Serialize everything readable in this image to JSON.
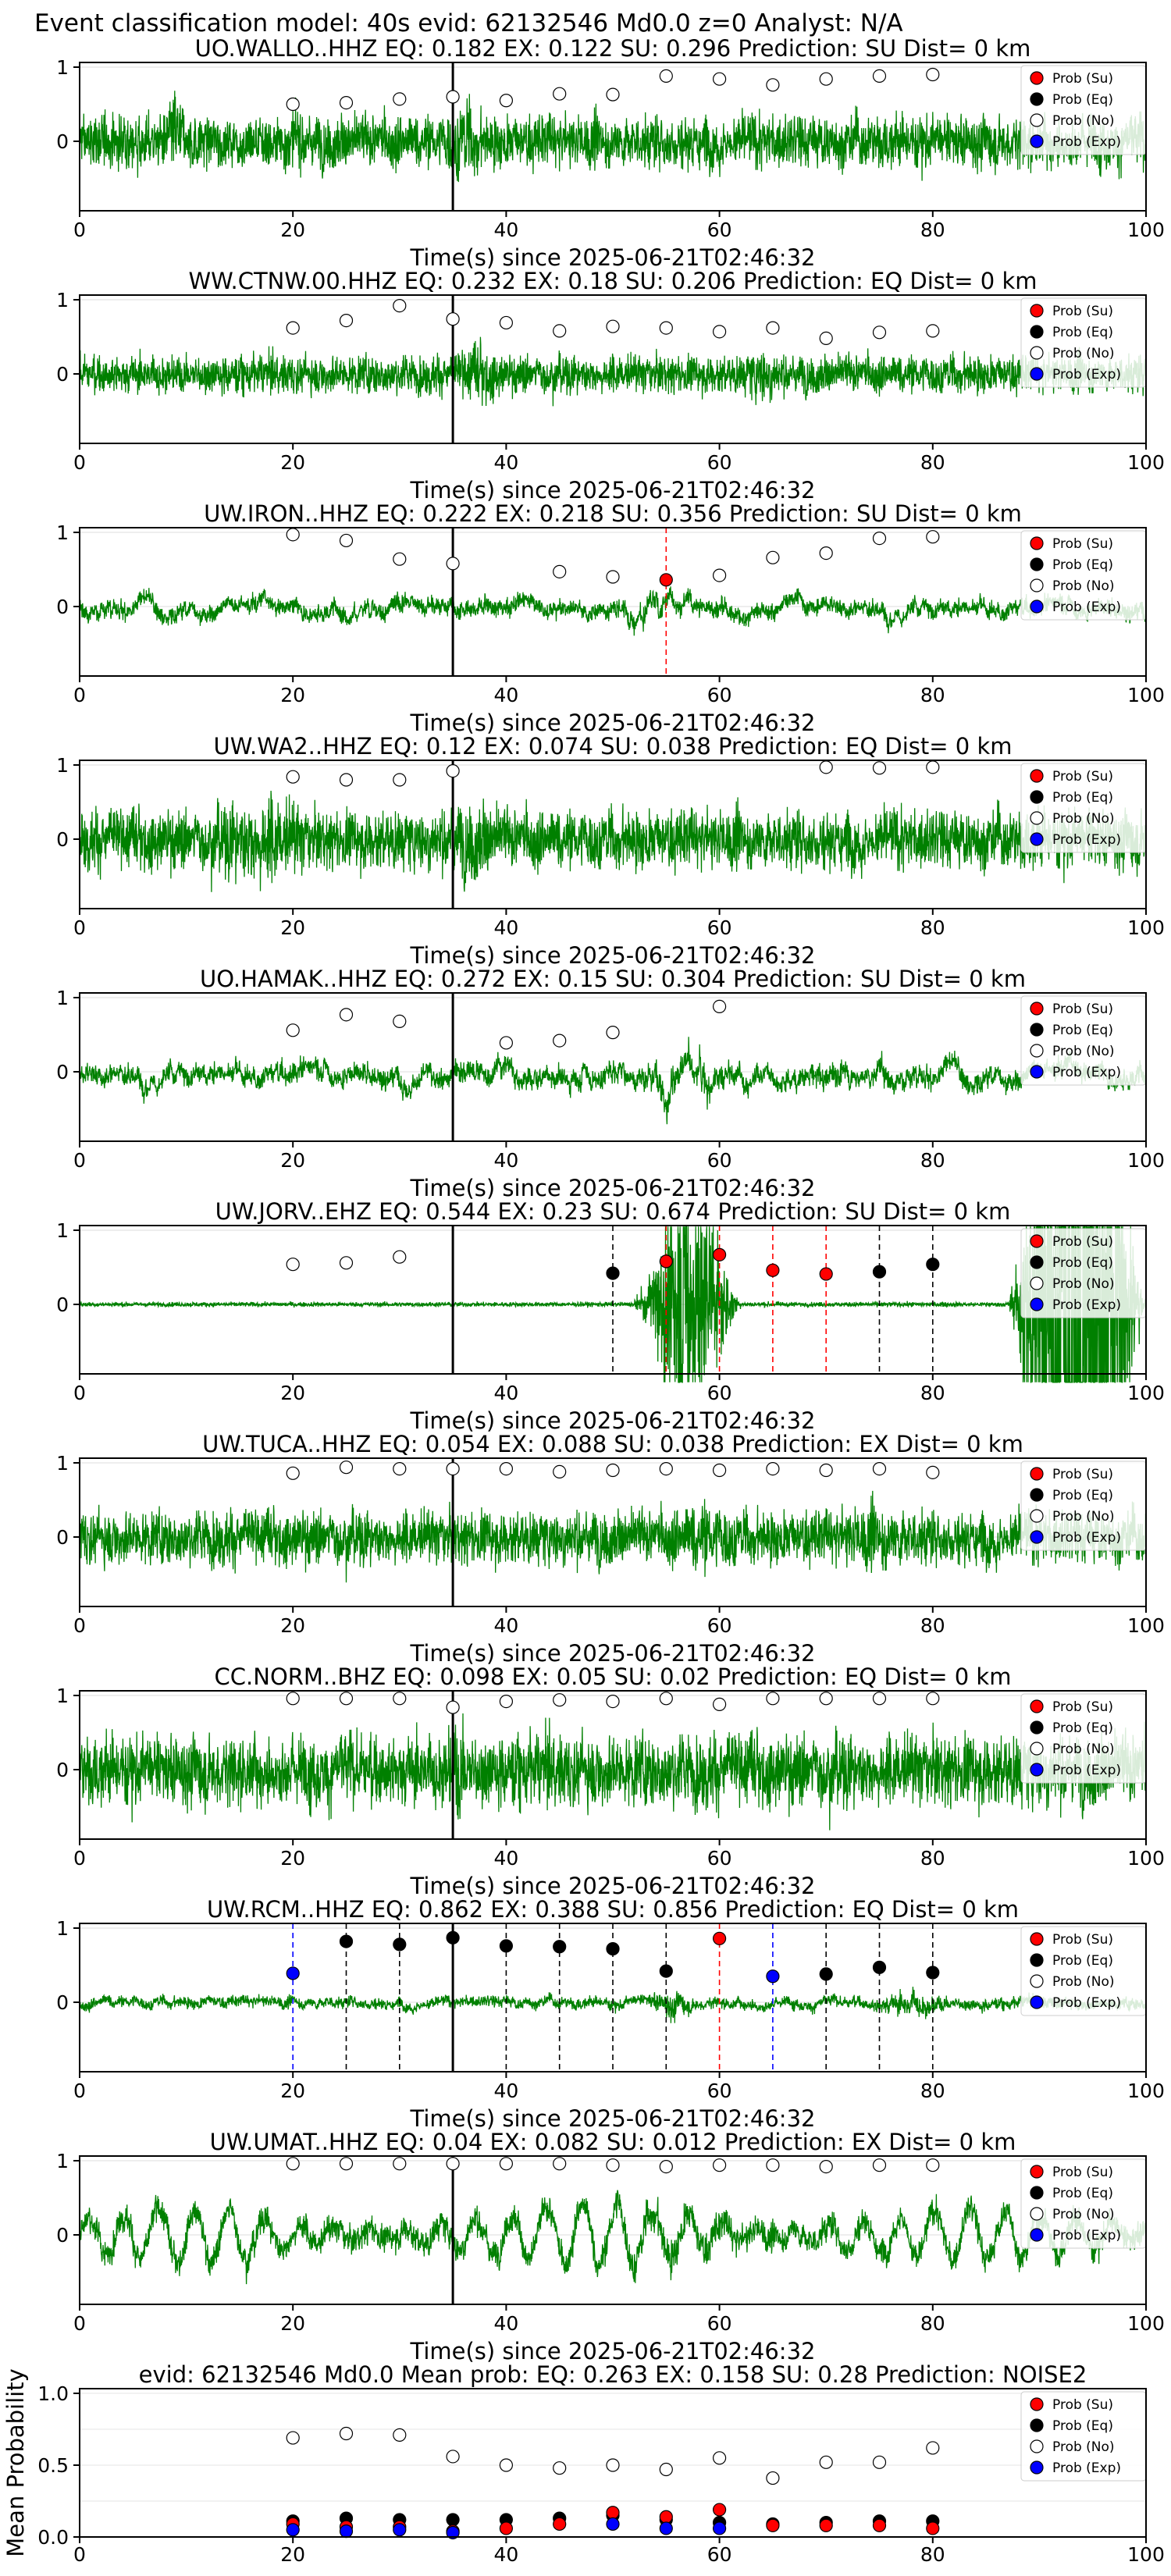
{
  "figure": {
    "suptitle": "Event classification model: 40s evid: 62132546 Md0.0 z=0 Analyst: N/A",
    "legend_labels": [
      "Prob (Su)",
      "Prob (Eq)",
      "Prob (No)",
      "Prob (Exp)"
    ],
    "legend_colors": [
      "#ff0000",
      "#000000",
      "#ffffff",
      "#0000ff"
    ],
    "waveform_color": "#008000",
    "xlabel": "Time(s) since 2025-06-21T02:46:32",
    "mean_ylabel": "Mean Probability"
  },
  "chart_data": [
    {
      "type": "line",
      "station": "UO.WALLO..HHZ",
      "title": "UO.WALLO..HHZ   EQ: 0.182  EX: 0.122  SU: 0.296   Prediction: SU    Dist= 0 km",
      "xlim": [
        0,
        100
      ],
      "xticks": [
        "0",
        "20",
        "40",
        "60",
        "80",
        "100"
      ],
      "yticks": [
        "1",
        "0"
      ],
      "ylim": [
        -1,
        1
      ],
      "origin_time": 35,
      "noise_style": "broadband",
      "noise_amp": 0.45,
      "burst": [
        [
          8,
          10,
          1.6
        ],
        [
          34,
          38,
          1.5
        ]
      ],
      "points": [
        {
          "cls": "no",
          "x": [
            20,
            25,
            30,
            35,
            40,
            45,
            50,
            55,
            60,
            65,
            70,
            75,
            80
          ],
          "y": [
            0.5,
            0.52,
            0.57,
            0.6,
            0.55,
            0.64,
            0.63,
            0.88,
            0.84,
            0.76,
            0.84,
            0.88,
            0.9
          ]
        }
      ],
      "vlines": []
    },
    {
      "type": "line",
      "station": "WW.CTNW.00.HHZ",
      "title": "WW.CTNW.00.HHZ   EQ: 0.232  EX: 0.18  SU: 0.206   Prediction: EQ    Dist= 0 km",
      "xlim": [
        0,
        100
      ],
      "xticks": [
        "0",
        "20",
        "40",
        "60",
        "80",
        "100"
      ],
      "yticks": [
        "1",
        "0"
      ],
      "ylim": [
        -1,
        1
      ],
      "origin_time": 35,
      "noise_style": "broadband",
      "noise_amp": 0.32,
      "burst": [
        [
          35,
          40,
          1.5
        ],
        [
          62,
          66,
          1.4
        ]
      ],
      "points": [
        {
          "cls": "no",
          "x": [
            20,
            25,
            30,
            35,
            40,
            45,
            50,
            55,
            60,
            65,
            70,
            75,
            80
          ],
          "y": [
            0.62,
            0.72,
            0.92,
            0.74,
            0.69,
            0.58,
            0.64,
            0.62,
            0.57,
            0.62,
            0.48,
            0.56,
            0.58
          ]
        }
      ],
      "vlines": []
    },
    {
      "type": "line",
      "station": "UW.IRON..HHZ",
      "title": "UW.IRON..HHZ   EQ: 0.222  EX: 0.218  SU: 0.356   Prediction: SU    Dist= 0 km",
      "xlim": [
        0,
        100
      ],
      "xticks": [
        "0",
        "20",
        "40",
        "60",
        "80",
        "100"
      ],
      "yticks": [
        "1",
        "0"
      ],
      "ylim": [
        -1,
        1
      ],
      "origin_time": 35,
      "noise_style": "lowfreq",
      "noise_amp": 0.38,
      "burst": [
        [
          48,
          58,
          1.3
        ]
      ],
      "points": [
        {
          "cls": "no",
          "x": [
            20,
            25,
            30,
            35,
            45,
            50,
            60,
            65,
            70,
            75,
            80
          ],
          "y": [
            0.97,
            0.89,
            0.64,
            0.58,
            0.47,
            0.4,
            0.42,
            0.66,
            0.72,
            0.92,
            0.94
          ]
        },
        {
          "cls": "su",
          "x": [
            55
          ],
          "y": [
            0.36
          ]
        }
      ],
      "vlines": [
        {
          "x": 55,
          "cls": "su"
        }
      ]
    },
    {
      "type": "line",
      "station": "UW.WA2..HHZ",
      "title": "UW.WA2..HHZ   EQ: 0.12  EX: 0.074  SU: 0.038   Prediction: EQ    Dist= 0 km",
      "xlim": [
        0,
        100
      ],
      "xticks": [
        "0",
        "20",
        "40",
        "60",
        "80",
        "100"
      ],
      "yticks": [
        "1",
        "0"
      ],
      "ylim": [
        -1,
        1
      ],
      "origin_time": 35,
      "noise_style": "broadband",
      "noise_amp": 0.5,
      "burst": [
        [
          12,
          22,
          1.5
        ],
        [
          34,
          40,
          1.3
        ]
      ],
      "points": [
        {
          "cls": "no",
          "x": [
            20,
            25,
            30,
            35,
            70,
            75,
            80
          ],
          "y": [
            0.84,
            0.8,
            0.8,
            0.92,
            0.97,
            0.96,
            0.97
          ]
        }
      ],
      "vlines": []
    },
    {
      "type": "line",
      "station": "UO.HAMAK..HHZ",
      "title": "UO.HAMAK..HHZ   EQ: 0.272  EX: 0.15  SU: 0.304   Prediction: SU    Dist= 0 km",
      "xlim": [
        0,
        100
      ],
      "xticks": [
        "0",
        "20",
        "40",
        "60",
        "80",
        "100"
      ],
      "yticks": [
        "1",
        "0"
      ],
      "ylim": [
        -1,
        1
      ],
      "origin_time": 35,
      "noise_style": "lowfreq",
      "noise_amp": 0.45,
      "burst": [
        [
          52,
          62,
          1.6
        ]
      ],
      "points": [
        {
          "cls": "no",
          "x": [
            20,
            25,
            30,
            40,
            45,
            50,
            60
          ],
          "y": [
            0.56,
            0.77,
            0.68,
            0.39,
            0.42,
            0.53,
            0.88
          ]
        }
      ],
      "vlines": []
    },
    {
      "type": "line",
      "station": "UW.JORV..EHZ",
      "title": "UW.JORV..EHZ   EQ: 0.544  EX: 0.23  SU: 0.674   Prediction: SU    Dist= 0 km",
      "xlim": [
        0,
        100
      ],
      "xticks": [
        "0",
        "20",
        "40",
        "60",
        "80",
        "100"
      ],
      "yticks": [
        "1",
        "0"
      ],
      "ylim": [
        -1,
        1
      ],
      "origin_time": 35,
      "noise_style": "quiet",
      "noise_amp": 0.03,
      "burst": [
        [
          52,
          62,
          6.0
        ],
        [
          87,
          100,
          14.0
        ]
      ],
      "points": [
        {
          "cls": "no",
          "x": [
            20,
            25,
            30
          ],
          "y": [
            0.54,
            0.56,
            0.64
          ]
        },
        {
          "cls": "eq",
          "x": [
            50,
            75,
            80
          ],
          "y": [
            0.42,
            0.44,
            0.54
          ]
        },
        {
          "cls": "su",
          "x": [
            55,
            60,
            65,
            70
          ],
          "y": [
            0.58,
            0.67,
            0.46,
            0.41
          ]
        }
      ],
      "vlines": [
        {
          "x": 50,
          "cls": "eq"
        },
        {
          "x": 55,
          "cls": "su"
        },
        {
          "x": 60,
          "cls": "su"
        },
        {
          "x": 65,
          "cls": "su"
        },
        {
          "x": 70,
          "cls": "su"
        },
        {
          "x": 75,
          "cls": "eq"
        },
        {
          "x": 80,
          "cls": "eq"
        }
      ]
    },
    {
      "type": "line",
      "station": "UW.TUCA..HHZ",
      "title": "UW.TUCA..HHZ   EQ: 0.054  EX: 0.088  SU: 0.038   Prediction: EX    Dist= 0 km",
      "xlim": [
        0,
        100
      ],
      "xticks": [
        "0",
        "20",
        "40",
        "60",
        "80",
        "100"
      ],
      "yticks": [
        "1",
        "0"
      ],
      "ylim": [
        -1,
        1
      ],
      "origin_time": 35,
      "noise_style": "broadband",
      "noise_amp": 0.45,
      "burst": [
        [
          55,
          62,
          1.3
        ],
        [
          70,
          80,
          1.2
        ]
      ],
      "points": [
        {
          "cls": "no",
          "x": [
            20,
            25,
            30,
            35,
            40,
            45,
            50,
            55,
            60,
            65,
            70,
            75,
            80
          ],
          "y": [
            0.86,
            0.94,
            0.92,
            0.92,
            0.92,
            0.88,
            0.9,
            0.92,
            0.9,
            0.92,
            0.9,
            0.92,
            0.87
          ]
        }
      ],
      "vlines": []
    },
    {
      "type": "line",
      "station": "CC.NORM..BHZ",
      "title": "CC.NORM..BHZ   EQ: 0.098  EX: 0.05  SU: 0.02   Prediction: EQ    Dist= 0 km",
      "xlim": [
        0,
        100
      ],
      "xticks": [
        "0",
        "20",
        "40",
        "60",
        "80",
        "100"
      ],
      "yticks": [
        "1",
        "0"
      ],
      "ylim": [
        -1,
        1
      ],
      "origin_time": 35,
      "noise_style": "broadband",
      "noise_amp": 0.6,
      "burst": [
        [
          34,
          37,
          1.4
        ]
      ],
      "points": [
        {
          "cls": "no",
          "x": [
            20,
            25,
            30,
            35,
            40,
            45,
            50,
            55,
            60,
            65,
            70,
            75,
            80
          ],
          "y": [
            0.96,
            0.96,
            0.96,
            0.84,
            0.92,
            0.94,
            0.92,
            0.96,
            0.88,
            0.96,
            0.96,
            0.96,
            0.96
          ]
        }
      ],
      "vlines": []
    },
    {
      "type": "line",
      "station": "UW.RCM..HHZ",
      "title": "UW.RCM..HHZ   EQ: 0.862  EX: 0.388  SU: 0.856   Prediction: EQ    Dist= 0 km",
      "xlim": [
        0,
        100
      ],
      "xticks": [
        "0",
        "20",
        "40",
        "60",
        "80",
        "100"
      ],
      "yticks": [
        "1",
        "0"
      ],
      "ylim": [
        -1,
        1
      ],
      "origin_time": 35,
      "noise_style": "mixed",
      "noise_amp": 0.2,
      "burst": [
        [
          53,
          58,
          2.2
        ],
        [
          74,
          82,
          2.0
        ]
      ],
      "points": [
        {
          "cls": "exp",
          "x": [
            20,
            65
          ],
          "y": [
            0.39,
            0.35
          ]
        },
        {
          "cls": "eq",
          "x": [
            25,
            30,
            35,
            40,
            45,
            50,
            55,
            70,
            75,
            80
          ],
          "y": [
            0.82,
            0.78,
            0.87,
            0.76,
            0.75,
            0.72,
            0.42,
            0.38,
            0.47,
            0.4
          ]
        },
        {
          "cls": "su",
          "x": [
            60
          ],
          "y": [
            0.86
          ]
        }
      ],
      "vlines": [
        {
          "x": 20,
          "cls": "exp"
        },
        {
          "x": 25,
          "cls": "eq"
        },
        {
          "x": 30,
          "cls": "eq"
        },
        {
          "x": 40,
          "cls": "eq"
        },
        {
          "x": 45,
          "cls": "eq"
        },
        {
          "x": 50,
          "cls": "eq"
        },
        {
          "x": 55,
          "cls": "eq"
        },
        {
          "x": 60,
          "cls": "su"
        },
        {
          "x": 65,
          "cls": "exp"
        },
        {
          "x": 70,
          "cls": "eq"
        },
        {
          "x": 75,
          "cls": "eq"
        },
        {
          "x": 80,
          "cls": "eq"
        }
      ]
    },
    {
      "type": "line",
      "station": "UW.UMAT..HHZ",
      "title": "UW.UMAT..HHZ   EQ: 0.04  EX: 0.082  SU: 0.012   Prediction: EX    Dist= 0 km",
      "xlim": [
        0,
        100
      ],
      "xticks": [
        "0",
        "20",
        "40",
        "60",
        "80",
        "100"
      ],
      "yticks": [
        "1",
        "0"
      ],
      "ylim": [
        -1,
        1
      ],
      "origin_time": 35,
      "noise_style": "swell",
      "noise_amp": 0.55,
      "burst": [
        [
          45,
          65,
          1.3
        ]
      ],
      "points": [
        {
          "cls": "no",
          "x": [
            20,
            25,
            30,
            35,
            40,
            45,
            50,
            55,
            60,
            65,
            70,
            75,
            80
          ],
          "y": [
            0.96,
            0.96,
            0.96,
            0.96,
            0.96,
            0.96,
            0.94,
            0.92,
            0.94,
            0.94,
            0.92,
            0.94,
            0.94
          ]
        }
      ],
      "vlines": []
    },
    {
      "type": "scatter",
      "title": "evid: 62132546  Md0.0   Mean prob:   EQ: 0.263  EX: 0.158  SU: 0.28   Prediction: NOISE2",
      "ylabel": "Mean Probability",
      "xlim": [
        0,
        100
      ],
      "ylim": [
        0,
        1
      ],
      "xticks": [
        "0",
        "20",
        "40",
        "60",
        "80",
        "100"
      ],
      "yticks": [
        "1.0",
        "0.5",
        "0.0"
      ],
      "series": [
        {
          "name": "Prob (No)",
          "cls": "no",
          "x": [
            20,
            25,
            30,
            35,
            40,
            45,
            50,
            55,
            60,
            65,
            70,
            75,
            80
          ],
          "y": [
            0.69,
            0.72,
            0.71,
            0.56,
            0.5,
            0.48,
            0.5,
            0.47,
            0.55,
            0.41,
            0.52,
            0.52,
            0.62
          ]
        },
        {
          "name": "Prob (Eq)",
          "cls": "eq",
          "x": [
            20,
            25,
            30,
            35,
            40,
            45,
            50,
            55,
            60,
            65,
            70,
            75,
            80
          ],
          "y": [
            0.11,
            0.13,
            0.12,
            0.12,
            0.12,
            0.13,
            0.15,
            0.12,
            0.1,
            0.09,
            0.1,
            0.11,
            0.11
          ]
        },
        {
          "name": "Prob (Su)",
          "cls": "su",
          "x": [
            20,
            25,
            30,
            35,
            40,
            45,
            50,
            55,
            60,
            65,
            70,
            75,
            80
          ],
          "y": [
            0.09,
            0.07,
            0.07,
            0.04,
            0.06,
            0.09,
            0.17,
            0.14,
            0.19,
            0.08,
            0.08,
            0.08,
            0.06
          ]
        },
        {
          "name": "Prob (Exp)",
          "cls": "exp",
          "x": [
            20,
            25,
            30,
            35,
            50,
            55,
            60
          ],
          "y": [
            0.05,
            0.04,
            0.05,
            0.03,
            0.09,
            0.06,
            0.06
          ]
        }
      ]
    }
  ]
}
